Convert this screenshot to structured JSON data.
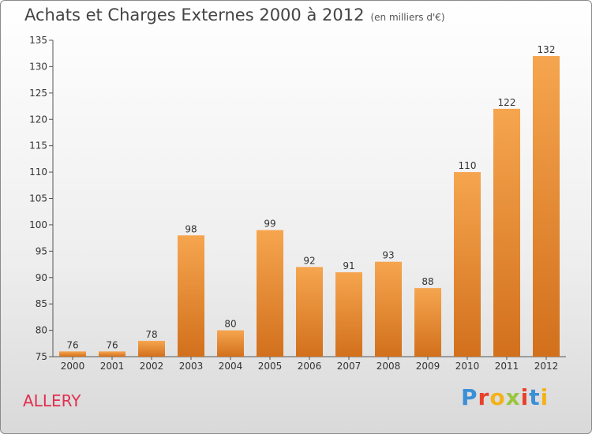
{
  "header": {
    "title": "Achats et Charges Externes 2000 à 2012",
    "subtitle": "(en milliers d'€)"
  },
  "footer": {
    "place": "ALLERY",
    "brand": "Proxiti"
  },
  "colors": {
    "bar_top": "#f6a54f",
    "bar_bottom": "#d2701c",
    "place": "#e0304f",
    "brand_letters": [
      "#3b8fd6",
      "#e8402a",
      "#f3b21a",
      "#9bc53d",
      "#e8402a",
      "#3b8fd6",
      "#f3b21a"
    ]
  },
  "chart_data": {
    "type": "bar",
    "title": "Achats et Charges Externes 2000 à 2012",
    "subtitle": "(en milliers d'€)",
    "categories": [
      "2000",
      "2001",
      "2002",
      "2003",
      "2004",
      "2005",
      "2006",
      "2007",
      "2008",
      "2009",
      "2010",
      "2011",
      "2012"
    ],
    "values": [
      76,
      76,
      78,
      98,
      80,
      99,
      92,
      91,
      93,
      88,
      110,
      122,
      132
    ],
    "ylim": [
      75,
      135
    ],
    "yticks": [
      75,
      80,
      85,
      90,
      95,
      100,
      105,
      110,
      115,
      120,
      125,
      130,
      135
    ],
    "xlabel": "",
    "ylabel": "",
    "grid": false,
    "data_labels": true
  }
}
